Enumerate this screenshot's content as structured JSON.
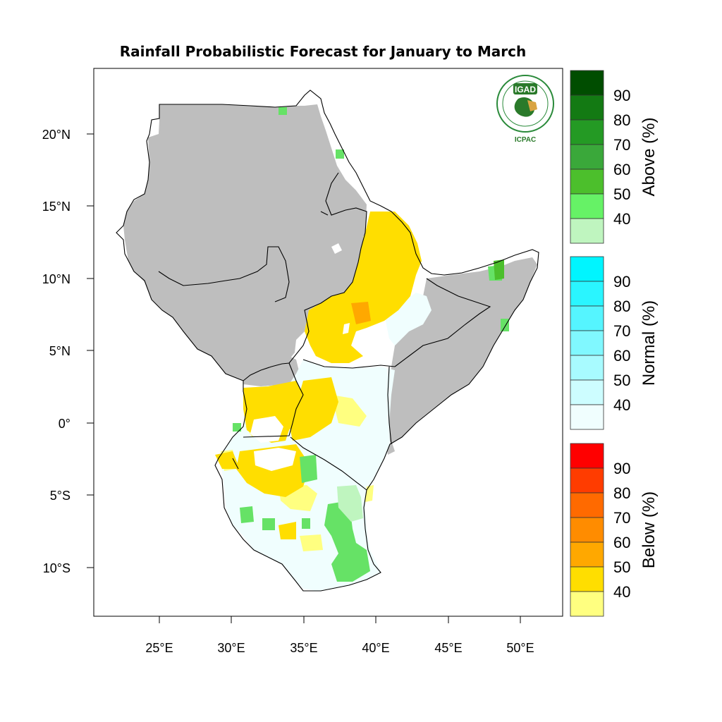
{
  "title": "Rainfall Probabilistic Forecast for January to March",
  "logo": {
    "text_top": "IGAD",
    "text_bottom": "ICPAC",
    "ring_text": "INTERGOVERNMENTAL AUTHORITY ON DEVELOPMENT"
  },
  "axes": {
    "lon_ticks": [
      "25°E",
      "30°E",
      "35°E",
      "40°E",
      "45°E",
      "50°E"
    ],
    "lat_ticks": [
      "20°N",
      "15°N",
      "10°N",
      "5°N",
      "0°",
      "5°S",
      "10°S"
    ]
  },
  "legend": {
    "above": {
      "title": "Above (%)",
      "labels": [
        "90",
        "80",
        "70",
        "60",
        "50",
        "40"
      ],
      "colors": [
        "#004d00",
        "#137a13",
        "#249a24",
        "#3aa83a",
        "#4cbf2c",
        "#66f266",
        "#bff5bf"
      ]
    },
    "normal": {
      "title": "Normal (%)",
      "labels": [
        "90",
        "80",
        "70",
        "60",
        "50",
        "40"
      ],
      "colors": [
        "#00f5ff",
        "#2af5ff",
        "#55f5ff",
        "#80f8ff",
        "#a8fbff",
        "#cdfdff",
        "#f0fefe"
      ]
    },
    "below": {
      "title": "Below (%)",
      "labels": [
        "90",
        "80",
        "70",
        "60",
        "50",
        "40"
      ],
      "colors": [
        "#ff0000",
        "#ff3c00",
        "#ff6a00",
        "#ff8c00",
        "#ffa800",
        "#ffde00",
        "#ffff80"
      ]
    }
  },
  "map_colors": {
    "dry_season_mask": "#bebebe",
    "normal": "#f0fefe",
    "above_40": "#66e266",
    "above_50": "#4cbf2c",
    "below_40": "#ffff80",
    "below_50": "#ffde00",
    "below_60": "#ffa800",
    "border": "#000000"
  }
}
